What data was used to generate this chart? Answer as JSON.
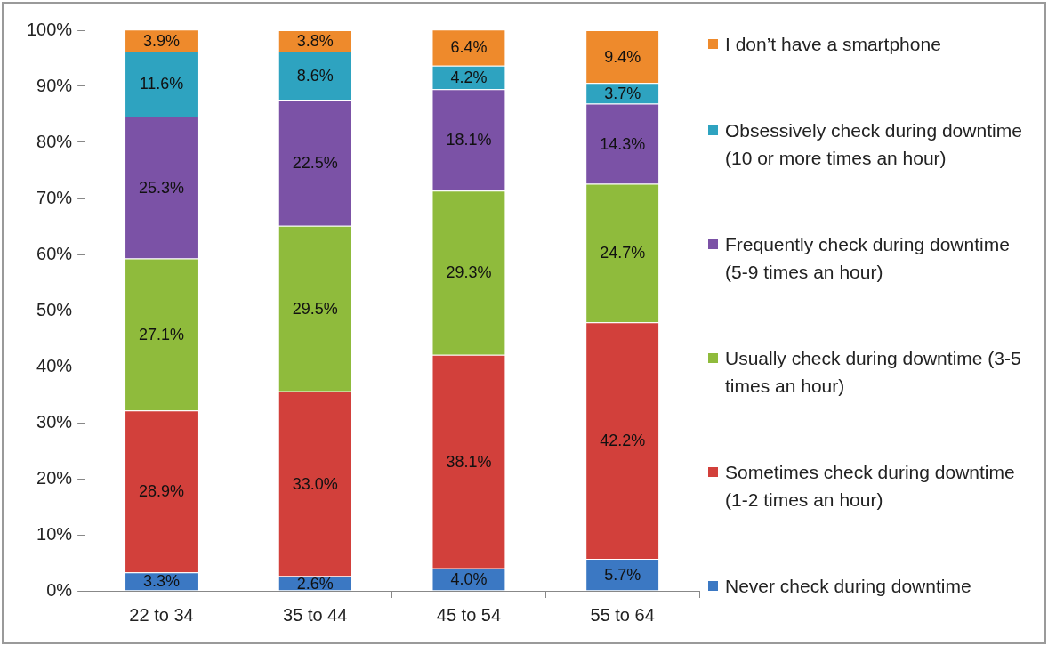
{
  "chart_data": {
    "type": "bar",
    "stacked": true,
    "categories": [
      "22 to 34",
      "35 to 44",
      "45 to 54",
      "55 to 64"
    ],
    "ylim": [
      0,
      100
    ],
    "yticks": [
      {
        "value": 0,
        "label": "0%"
      },
      {
        "value": 10,
        "label": "10%"
      },
      {
        "value": 20,
        "label": "20%"
      },
      {
        "value": 30,
        "label": "30%"
      },
      {
        "value": 40,
        "label": "40%"
      },
      {
        "value": 50,
        "label": "50%"
      },
      {
        "value": 60,
        "label": "60%"
      },
      {
        "value": 70,
        "label": "70%"
      },
      {
        "value": 80,
        "label": "80%"
      },
      {
        "value": 90,
        "label": "90%"
      },
      {
        "value": 100,
        "label": "100%"
      }
    ],
    "grid": false,
    "legend": "right",
    "series": [
      {
        "name": "Never check during downtime",
        "color": "#3b78c3",
        "values": [
          3.3,
          2.6,
          4.0,
          5.7
        ],
        "value_labels": [
          "3.3%",
          "2.6%",
          "4.0%",
          "5.7%"
        ]
      },
      {
        "name": "Sometimes check during downtime (1-2 times an hour)",
        "color": "#d2403b",
        "values": [
          28.9,
          33.0,
          38.1,
          42.2
        ],
        "value_labels": [
          "28.9%",
          "33.0%",
          "38.1%",
          "42.2%"
        ]
      },
      {
        "name": "Usually  check during downtime (3-5 times an hour)",
        "color": "#8fbb3c",
        "values": [
          27.1,
          29.5,
          29.3,
          24.7
        ],
        "value_labels": [
          "27.1%",
          "29.5%",
          "29.3%",
          "24.7%"
        ]
      },
      {
        "name": "Frequently check during downtime (5-9 times an hour)",
        "color": "#7b52a6",
        "values": [
          25.3,
          22.5,
          18.1,
          14.3
        ],
        "value_labels": [
          "25.3%",
          "22.5%",
          "18.1%",
          "14.3%"
        ]
      },
      {
        "name": "Obsessively check during downtime (10 or more times an hour)",
        "color": "#2ea3c0",
        "values": [
          11.6,
          8.6,
          4.2,
          3.7
        ],
        "value_labels": [
          "11.6%",
          "8.6%",
          "4.2%",
          "3.7%"
        ]
      },
      {
        "name": "I don’t have a smartphone",
        "color": "#ee8a2c",
        "values": [
          3.9,
          3.8,
          6.4,
          9.4
        ],
        "value_labels": [
          "3.9%",
          "3.8%",
          "6.4%",
          "9.4%"
        ]
      }
    ]
  }
}
